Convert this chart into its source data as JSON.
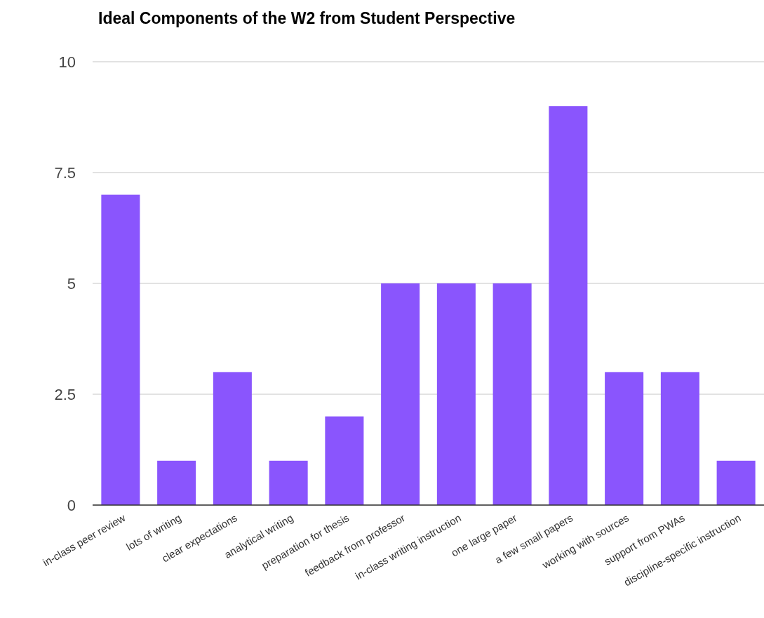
{
  "chart_data": {
    "type": "bar",
    "title": "Ideal Components of the W2 from Student Perspective",
    "categories": [
      "in-class peer review",
      "lots of writing",
      "clear expectations",
      "analytical writing",
      "preparation for thesis",
      "feedback from professor",
      "in-class writing instruction",
      "one large paper",
      "a few small papers",
      "working with sources",
      "support from PWAs",
      "discipline-specific instruction"
    ],
    "values": [
      7,
      1,
      3,
      1,
      2,
      5,
      5,
      5,
      9,
      3,
      3,
      1
    ],
    "color": "#8a55fd",
    "ylim": [
      0,
      10
    ],
    "yticks": [
      0,
      2.5,
      5,
      7.5,
      10
    ],
    "grid": "y"
  }
}
